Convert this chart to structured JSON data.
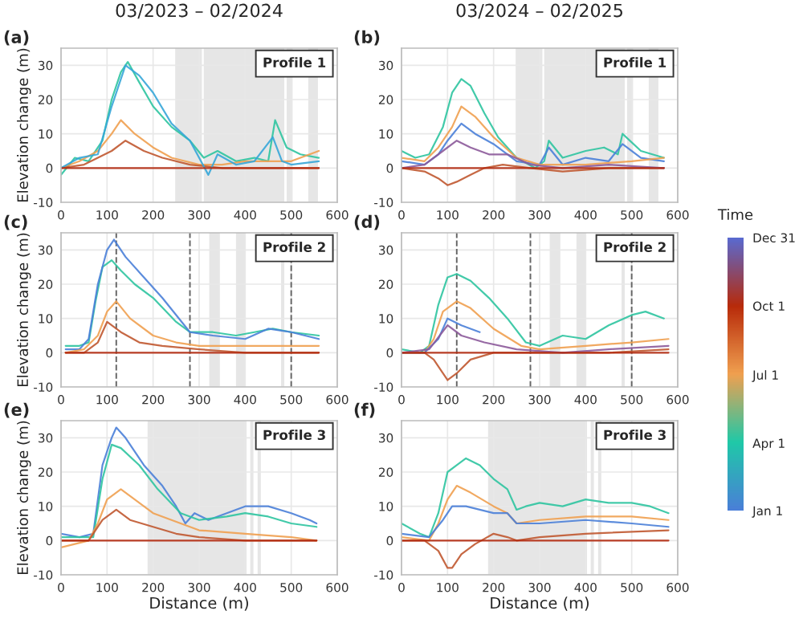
{
  "chart_data": [
    {
      "type": "line",
      "title": "03/2023 – 02/2024",
      "ylabel": "Elevation change (m)",
      "annotations": [
        "(a)",
        "Profile 1"
      ],
      "xlim": [
        0,
        600
      ],
      "ylim": [
        -10,
        35
      ],
      "xticks": [
        0,
        100,
        200,
        300,
        400,
        500,
        600
      ],
      "yticks": [
        -10,
        0,
        10,
        20,
        30
      ],
      "grid": true,
      "legend": false,
      "bands": [
        {
          "axis": "x",
          "from": 248,
          "to": 306
        },
        {
          "axis": "x",
          "from": 310,
          "to": 485
        },
        {
          "axis": "x",
          "from": 490,
          "to": 503
        },
        {
          "axis": "x",
          "from": 537,
          "to": 558
        }
      ],
      "series": [
        {
          "color": "#2ec4a0",
          "x": [
            0,
            30,
            60,
            90,
            110,
            130,
            145,
            170,
            200,
            240,
            280,
            310,
            340,
            380,
            420,
            450,
            465,
            490,
            520,
            560
          ],
          "values": [
            -2,
            3,
            2,
            8,
            20,
            28,
            31,
            25,
            18,
            12,
            8,
            3,
            5,
            2,
            3,
            2,
            14,
            6,
            4,
            3
          ]
        },
        {
          "color": "#f0a050",
          "x": [
            0,
            40,
            80,
            110,
            130,
            160,
            200,
            240,
            300,
            350,
            400,
            450,
            500,
            560
          ],
          "values": [
            0,
            2,
            5,
            10,
            14,
            10,
            6,
            3,
            1,
            1,
            2,
            2,
            2,
            5
          ]
        },
        {
          "color": "#c05830",
          "x": [
            0,
            50,
            80,
            110,
            140,
            180,
            220,
            280,
            350,
            450,
            560
          ],
          "values": [
            0,
            1,
            3,
            5,
            8,
            5,
            3,
            1,
            0,
            0,
            0
          ]
        },
        {
          "color": "#36a6d8",
          "x": [
            0,
            40,
            80,
            110,
            140,
            170,
            200,
            240,
            280,
            320,
            340,
            380,
            420,
            460,
            480,
            500,
            560
          ],
          "values": [
            0,
            3,
            4,
            18,
            30,
            27,
            22,
            13,
            8,
            -2,
            4,
            1,
            2,
            9,
            2,
            1,
            2
          ]
        },
        {
          "color": "#b22a10",
          "x": [
            0,
            560
          ],
          "values": [
            0,
            0
          ]
        }
      ]
    },
    {
      "type": "line",
      "title": "03/2024 – 02/2025",
      "annotations": [
        "(b)",
        "Profile 1"
      ],
      "xlim": [
        0,
        600
      ],
      "ylim": [
        -10,
        35
      ],
      "xticks": [
        0,
        100,
        200,
        300,
        400,
        500,
        600
      ],
      "yticks": [
        -10,
        0,
        10,
        20,
        30
      ],
      "grid": true,
      "legend": false,
      "clabel": "Time",
      "clim": [
        1,
        365
      ],
      "cticks": [
        {
          "value": 1,
          "label": "Jan 1"
        },
        {
          "value": 91,
          "label": "Apr 1"
        },
        {
          "value": 182,
          "label": "Jul 1"
        },
        {
          "value": 274,
          "label": "Oct 1"
        },
        {
          "value": 365,
          "label": "Dec 31"
        }
      ],
      "bands": [
        {
          "axis": "x",
          "from": 248,
          "to": 306
        },
        {
          "axis": "x",
          "from": 310,
          "to": 485
        },
        {
          "axis": "x",
          "from": 490,
          "to": 503
        },
        {
          "axis": "x",
          "from": 537,
          "to": 558
        }
      ],
      "series": [
        {
          "color": "#2ec4a0",
          "x": [
            0,
            30,
            60,
            90,
            110,
            130,
            150,
            180,
            210,
            250,
            290,
            310,
            320,
            350,
            400,
            440,
            470,
            480,
            520,
            570
          ],
          "values": [
            5,
            3,
            4,
            12,
            22,
            26,
            24,
            16,
            9,
            3,
            0,
            2,
            8,
            3,
            5,
            6,
            4,
            10,
            5,
            3
          ]
        },
        {
          "color": "#4a7fd8",
          "x": [
            0,
            50,
            80,
            100,
            130,
            160,
            200,
            250,
            300,
            320,
            350,
            400,
            450,
            480,
            520,
            570
          ],
          "values": [
            2,
            1,
            4,
            8,
            13,
            10,
            7,
            2,
            1,
            6,
            1,
            3,
            2,
            7,
            3,
            2
          ]
        },
        {
          "color": "#f0a050",
          "x": [
            0,
            50,
            80,
            110,
            130,
            160,
            200,
            250,
            300,
            400,
            500,
            570
          ],
          "values": [
            3,
            2,
            6,
            12,
            18,
            15,
            9,
            3,
            1,
            1,
            2,
            3
          ]
        },
        {
          "color": "#c05830",
          "x": [
            0,
            50,
            80,
            100,
            120,
            150,
            180,
            220,
            280,
            350,
            450,
            570
          ],
          "values": [
            0,
            -1,
            -3,
            -5,
            -4,
            -2,
            0,
            1,
            0,
            -1,
            0,
            0
          ]
        },
        {
          "color": "#8c5a9a",
          "x": [
            0,
            50,
            90,
            120,
            150,
            190,
            230,
            280,
            350,
            450,
            570
          ],
          "values": [
            0,
            1,
            5,
            8,
            6,
            4,
            4,
            1,
            0,
            1,
            0
          ]
        },
        {
          "color": "#b22a10",
          "x": [
            0,
            570
          ],
          "values": [
            0,
            0
          ]
        }
      ]
    },
    {
      "type": "line",
      "ylabel": "Elevation change (m)",
      "annotations": [
        "(c)",
        "Profile 2"
      ],
      "xlim": [
        0,
        600
      ],
      "ylim": [
        -10,
        35
      ],
      "xticks": [
        0,
        100,
        200,
        300,
        400,
        500,
        600
      ],
      "yticks": [
        -10,
        0,
        10,
        20,
        30
      ],
      "grid": true,
      "legend": false,
      "bands": [
        {
          "axis": "x",
          "from": 322,
          "to": 345
        },
        {
          "axis": "x",
          "from": 380,
          "to": 400
        },
        {
          "axis": "x",
          "from": 478,
          "to": 485
        }
      ],
      "ref_lines": [
        {
          "axis": "x",
          "value": 120,
          "line_style": "dashed"
        },
        {
          "axis": "x",
          "value": 280,
          "line_style": "dashed"
        },
        {
          "axis": "x",
          "value": 500,
          "line_style": "dashed"
        }
      ],
      "series": [
        {
          "color": "#2ec4a0",
          "x": [
            10,
            40,
            60,
            75,
            90,
            110,
            130,
            160,
            200,
            250,
            280,
            330,
            380,
            420,
            460,
            500,
            560
          ],
          "values": [
            2,
            2,
            3,
            15,
            25,
            27,
            24,
            20,
            16,
            9,
            6,
            6,
            5,
            6,
            7,
            6,
            5
          ]
        },
        {
          "color": "#4a7fd8",
          "x": [
            10,
            40,
            60,
            80,
            100,
            115,
            140,
            180,
            220,
            280,
            330,
            400,
            450,
            500,
            560
          ],
          "values": [
            1,
            1,
            4,
            20,
            30,
            33,
            28,
            22,
            16,
            6,
            5,
            4,
            7,
            6,
            4
          ]
        },
        {
          "color": "#f0a050",
          "x": [
            10,
            50,
            80,
            100,
            120,
            150,
            200,
            250,
            300,
            400,
            500,
            560
          ],
          "values": [
            0,
            1,
            5,
            12,
            15,
            10,
            5,
            3,
            2,
            2,
            2,
            2
          ]
        },
        {
          "color": "#c05830",
          "x": [
            10,
            50,
            80,
            100,
            130,
            170,
            220,
            300,
            400,
            560
          ],
          "values": [
            0,
            0,
            3,
            9,
            6,
            3,
            2,
            1,
            0,
            0
          ]
        },
        {
          "color": "#b22a10",
          "x": [
            10,
            560
          ],
          "values": [
            0,
            0
          ]
        }
      ]
    },
    {
      "type": "line",
      "annotations": [
        "(d)",
        "Profile 2"
      ],
      "xlim": [
        0,
        600
      ],
      "ylim": [
        -10,
        35
      ],
      "xticks": [
        0,
        100,
        200,
        300,
        400,
        500,
        600
      ],
      "yticks": [
        -10,
        0,
        10,
        20,
        30
      ],
      "grid": true,
      "legend": false,
      "bands": [
        {
          "axis": "x",
          "from": 322,
          "to": 345
        },
        {
          "axis": "x",
          "from": 380,
          "to": 400
        },
        {
          "axis": "x",
          "from": 478,
          "to": 485
        }
      ],
      "ref_lines": [
        {
          "axis": "x",
          "value": 120,
          "line_style": "dashed"
        },
        {
          "axis": "x",
          "value": 280,
          "line_style": "dashed"
        },
        {
          "axis": "x",
          "value": 500,
          "line_style": "dashed"
        }
      ],
      "series": [
        {
          "color": "#2ec4a0",
          "x": [
            0,
            40,
            60,
            80,
            100,
            120,
            150,
            190,
            230,
            270,
            300,
            350,
            400,
            450,
            500,
            530,
            570
          ],
          "values": [
            1,
            0,
            2,
            14,
            22,
            23,
            21,
            16,
            10,
            3,
            2,
            5,
            4,
            8,
            11,
            12,
            10
          ]
        },
        {
          "color": "#f0a050",
          "x": [
            0,
            50,
            70,
            90,
            120,
            150,
            200,
            260,
            300,
            400,
            500,
            580
          ],
          "values": [
            0,
            0,
            4,
            12,
            15,
            13,
            7,
            2,
            1,
            2,
            3,
            4
          ]
        },
        {
          "color": "#4a7fd8",
          "x": [
            0,
            50,
            80,
            100,
            130,
            170
          ],
          "values": [
            0,
            0,
            4,
            10,
            8,
            6
          ]
        },
        {
          "color": "#c05830",
          "x": [
            0,
            50,
            70,
            90,
            100,
            120,
            150,
            200,
            280,
            350,
            450,
            580
          ],
          "values": [
            0,
            0,
            -2,
            -6,
            -8,
            -6,
            -2,
            0,
            0,
            0,
            0,
            1
          ]
        },
        {
          "color": "#8c5a9a",
          "x": [
            0,
            60,
            100,
            130,
            180,
            250,
            350,
            450,
            580
          ],
          "values": [
            0,
            1,
            8,
            5,
            3,
            1,
            0,
            1,
            2
          ]
        },
        {
          "color": "#b22a10",
          "x": [
            0,
            580
          ],
          "values": [
            0,
            0
          ]
        }
      ]
    },
    {
      "type": "line",
      "xlabel": "Distance (m)",
      "ylabel": "Elevation change (m)",
      "annotations": [
        "(e)",
        "Profile 3"
      ],
      "xlim": [
        0,
        600
      ],
      "ylim": [
        -10,
        35
      ],
      "xticks": [
        0,
        100,
        200,
        300,
        400,
        500,
        600
      ],
      "yticks": [
        -10,
        0,
        10,
        20,
        30
      ],
      "grid": true,
      "legend": false,
      "bands": [
        {
          "axis": "x",
          "from": 188,
          "to": 403
        },
        {
          "axis": "x",
          "from": 411,
          "to": 418
        },
        {
          "axis": "x",
          "from": 427,
          "to": 434
        }
      ],
      "series": [
        {
          "color": "#4a7fd8",
          "x": [
            0,
            40,
            70,
            90,
            110,
            120,
            140,
            180,
            220,
            250,
            270,
            290,
            320,
            360,
            400,
            450,
            500,
            540,
            555
          ],
          "values": [
            2,
            1,
            2,
            22,
            30,
            33,
            30,
            22,
            16,
            10,
            5,
            8,
            6,
            8,
            10,
            10,
            8,
            6,
            5
          ]
        },
        {
          "color": "#2ec4a0",
          "x": [
            0,
            70,
            90,
            110,
            130,
            170,
            210,
            260,
            300,
            360,
            400,
            450,
            500,
            555
          ],
          "values": [
            1,
            1,
            18,
            28,
            27,
            22,
            15,
            8,
            6,
            7,
            8,
            7,
            5,
            4
          ]
        },
        {
          "color": "#f0a050",
          "x": [
            0,
            60,
            80,
            100,
            130,
            160,
            200,
            260,
            300,
            400,
            500,
            555
          ],
          "values": [
            -2,
            0,
            5,
            12,
            15,
            12,
            8,
            5,
            3,
            2,
            1,
            0
          ]
        },
        {
          "color": "#c05830",
          "x": [
            0,
            60,
            90,
            120,
            150,
            200,
            250,
            300,
            400,
            555
          ],
          "values": [
            0,
            0,
            6,
            9,
            6,
            4,
            2,
            1,
            0,
            0
          ]
        },
        {
          "color": "#b22a10",
          "x": [
            0,
            555
          ],
          "values": [
            0,
            0
          ]
        }
      ]
    },
    {
      "type": "line",
      "xlabel": "Distance (m)",
      "annotations": [
        "(f)",
        "Profile 3"
      ],
      "xlim": [
        0,
        600
      ],
      "ylim": [
        -10,
        35
      ],
      "xticks": [
        0,
        100,
        200,
        300,
        400,
        500,
        600
      ],
      "yticks": [
        -10,
        0,
        10,
        20,
        30
      ],
      "grid": true,
      "legend": false,
      "bands": [
        {
          "axis": "x",
          "from": 188,
          "to": 403
        },
        {
          "axis": "x",
          "from": 411,
          "to": 418
        },
        {
          "axis": "x",
          "from": 427,
          "to": 434
        }
      ],
      "series": [
        {
          "color": "#2ec4a0",
          "x": [
            0,
            40,
            60,
            80,
            100,
            120,
            140,
            170,
            200,
            220,
            230,
            240,
            250,
            270,
            300,
            350,
            400,
            450,
            500,
            540,
            580
          ],
          "values": [
            5,
            2,
            1,
            8,
            20,
            22,
            24,
            22,
            18,
            16,
            15,
            null,
            9,
            10,
            11,
            10,
            12,
            11,
            11,
            10,
            8
          ]
        },
        {
          "color": "#f0a050",
          "x": [
            0,
            60,
            80,
            100,
            120,
            150,
            200,
            230,
            240,
            250,
            300,
            400,
            500,
            580
          ],
          "values": [
            1,
            0,
            5,
            12,
            16,
            14,
            10,
            8,
            null,
            5,
            6,
            7,
            7,
            6
          ]
        },
        {
          "color": "#c05830",
          "x": [
            0,
            50,
            80,
            100,
            110,
            130,
            160,
            200,
            230,
            240,
            250,
            300,
            400,
            580
          ],
          "values": [
            0,
            0,
            -3,
            -8,
            -8,
            -4,
            -1,
            2,
            1,
            null,
            0,
            1,
            2,
            3
          ]
        },
        {
          "color": "#4a7fd8",
          "x": [
            0,
            60,
            90,
            110,
            140,
            170,
            200,
            230,
            240,
            250,
            300,
            400,
            500,
            580
          ],
          "values": [
            2,
            1,
            6,
            10,
            10,
            9,
            8,
            8,
            null,
            5,
            5,
            6,
            5,
            4
          ]
        },
        {
          "color": "#b22a10",
          "x": [
            0,
            580
          ],
          "values": [
            0,
            0
          ]
        }
      ]
    }
  ]
}
